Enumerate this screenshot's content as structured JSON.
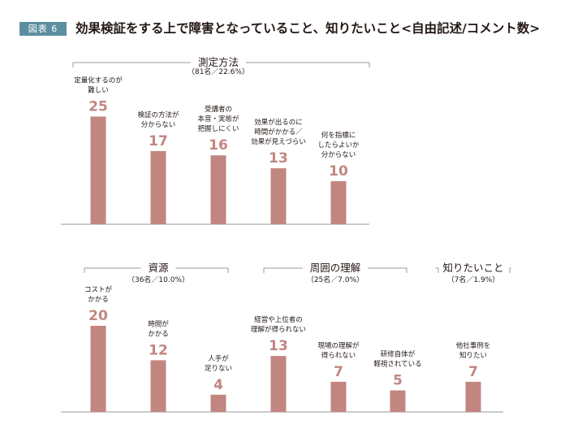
{
  "figure": {
    "badge": "図表 6",
    "title": "効果検証をする上で障害となっていること、知りたいこと<自由記述/コメント数>"
  },
  "colors": {
    "bar": "#c28680",
    "value_text": "#c28680",
    "badge_bg": "#5b8fa0",
    "axis": "#9a9a9a"
  },
  "chart_data": [
    {
      "type": "bar",
      "group": "測定方法",
      "group_note": "（81名／22.6%）",
      "categories": [
        "定量化するのが難しい",
        "検証の方法が分からない",
        "受講者の本音・実態が把握しにくい",
        "効果が出るのに時間がかかる／効果が見えづらい",
        "何を指標にしたらよいか分からない"
      ],
      "category_lines": [
        [
          "定量化するのが",
          "難しい"
        ],
        [
          "検証の方法が",
          "分からない"
        ],
        [
          "受講者の",
          "本音・実態が",
          "把握しにくい"
        ],
        [
          "効果が出るのに",
          "時間がかかる／",
          "効果が見えづらい"
        ],
        [
          "何を指標に",
          "したらよいか",
          "分からない"
        ]
      ],
      "values": [
        25,
        17,
        16,
        13,
        10
      ]
    },
    {
      "type": "bar",
      "group": "資源",
      "group_note": "（36名／10.0%）",
      "categories": [
        "コストがかかる",
        "時間がかかる",
        "人手が足りない"
      ],
      "category_lines": [
        [
          "コストが",
          "かかる"
        ],
        [
          "時間が",
          "かかる"
        ],
        [
          "人手が",
          "足りない"
        ]
      ],
      "values": [
        20,
        12,
        4
      ]
    },
    {
      "type": "bar",
      "group": "周囲の理解",
      "group_note": "（25名／7.0%）",
      "categories": [
        "経営や上位者の理解が得られない",
        "現場の理解が得られない",
        "研修自体が軽視されている"
      ],
      "category_lines": [
        [
          "経営や上位者の",
          "理解が得られない"
        ],
        [
          "現場の理解が",
          "得られない"
        ],
        [
          "研修自体が",
          "軽視されている"
        ]
      ],
      "values": [
        13,
        7,
        5
      ]
    },
    {
      "type": "bar",
      "group": "知りたいこと",
      "group_note": "（7名／1.9%）",
      "categories": [
        "他社事例を知りたい"
      ],
      "category_lines": [
        [
          "他社事例を",
          "知りたい"
        ]
      ],
      "values": [
        7
      ]
    }
  ]
}
